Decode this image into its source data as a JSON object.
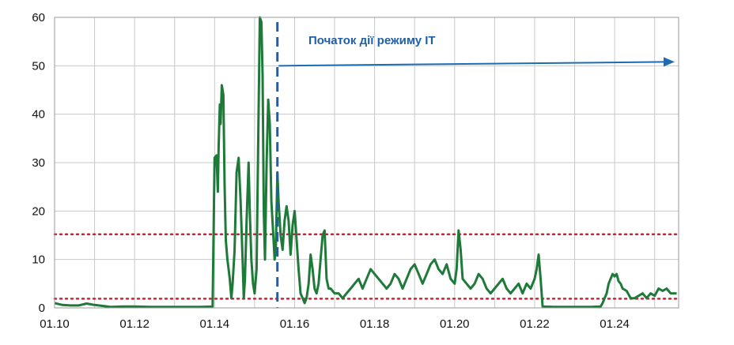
{
  "chart_data": {
    "type": "line",
    "title": "",
    "xlabel": "",
    "ylabel": "",
    "xlim": [
      10,
      25.6
    ],
    "ylim": [
      0,
      60
    ],
    "grid": true,
    "x_ticks": [
      {
        "value": 10,
        "label": "01.10"
      },
      {
        "value": 12,
        "label": "01.12"
      },
      {
        "value": 14,
        "label": "01.14"
      },
      {
        "value": 16,
        "label": "01.16"
      },
      {
        "value": 18,
        "label": "01.18"
      },
      {
        "value": 20,
        "label": "01.20"
      },
      {
        "value": 22,
        "label": "01.22"
      },
      {
        "value": 24,
        "label": "01.24"
      }
    ],
    "y_ticks": [
      {
        "value": 0,
        "label": "0"
      },
      {
        "value": 10,
        "label": "10"
      },
      {
        "value": 20,
        "label": "20"
      },
      {
        "value": 30,
        "label": "30"
      },
      {
        "value": 40,
        "label": "40"
      },
      {
        "value": 50,
        "label": "50"
      },
      {
        "value": 60,
        "label": "60"
      }
    ],
    "series": [
      {
        "color": "#1f7a3a",
        "points": [
          [
            10.0,
            1.0
          ],
          [
            10.2,
            0.6
          ],
          [
            10.4,
            0.5
          ],
          [
            10.6,
            0.5
          ],
          [
            10.8,
            0.9
          ],
          [
            11.0,
            0.6
          ],
          [
            11.2,
            0.4
          ],
          [
            11.4,
            0.2
          ],
          [
            11.7,
            0.3
          ],
          [
            12.0,
            0.3
          ],
          [
            12.4,
            0.2
          ],
          [
            12.8,
            0.2
          ],
          [
            13.2,
            0.2
          ],
          [
            13.6,
            0.2
          ],
          [
            13.95,
            0.3
          ],
          [
            14.0,
            31.0
          ],
          [
            14.05,
            31.5
          ],
          [
            14.08,
            24.0
          ],
          [
            14.1,
            33.0
          ],
          [
            14.13,
            42.0
          ],
          [
            14.15,
            38.0
          ],
          [
            14.18,
            46.0
          ],
          [
            14.22,
            44.0
          ],
          [
            14.25,
            25.0
          ],
          [
            14.28,
            14.0
          ],
          [
            14.32,
            10.0
          ],
          [
            14.38,
            6.0
          ],
          [
            14.42,
            2.0
          ],
          [
            14.45,
            5.0
          ],
          [
            14.5,
            12.0
          ],
          [
            14.55,
            28.0
          ],
          [
            14.6,
            31.0
          ],
          [
            14.65,
            22.0
          ],
          [
            14.7,
            10.0
          ],
          [
            14.73,
            2.0
          ],
          [
            14.76,
            6.0
          ],
          [
            14.8,
            18.0
          ],
          [
            14.85,
            30.0
          ],
          [
            14.88,
            20.0
          ],
          [
            14.92,
            10.0
          ],
          [
            14.96,
            5.0
          ],
          [
            15.0,
            3.0
          ],
          [
            15.05,
            8.0
          ],
          [
            15.1,
            40.0
          ],
          [
            15.13,
            60.0
          ],
          [
            15.17,
            59.0
          ],
          [
            15.2,
            48.0
          ],
          [
            15.23,
            20.0
          ],
          [
            15.26,
            10.0
          ],
          [
            15.3,
            30.0
          ],
          [
            15.34,
            43.0
          ],
          [
            15.38,
            38.0
          ],
          [
            15.42,
            22.0
          ],
          [
            15.46,
            16.0
          ],
          [
            15.5,
            10.0
          ],
          [
            15.53,
            12.0
          ],
          [
            15.57,
            28.0
          ],
          [
            15.6,
            22.0
          ],
          [
            15.65,
            15.0
          ],
          [
            15.7,
            12.0
          ],
          [
            15.75,
            18.0
          ],
          [
            15.8,
            21.0
          ],
          [
            15.85,
            18.0
          ],
          [
            15.9,
            11.0
          ],
          [
            15.95,
            17.0
          ],
          [
            16.0,
            20.0
          ],
          [
            16.05,
            14.0
          ],
          [
            16.1,
            8.0
          ],
          [
            16.15,
            3.0
          ],
          [
            16.2,
            2.0
          ],
          [
            16.25,
            1.0
          ],
          [
            16.3,
            2.0
          ],
          [
            16.35,
            5.0
          ],
          [
            16.4,
            11.0
          ],
          [
            16.45,
            8.0
          ],
          [
            16.5,
            4.0
          ],
          [
            16.55,
            3.0
          ],
          [
            16.6,
            5.0
          ],
          [
            16.65,
            10.0
          ],
          [
            16.7,
            15.0
          ],
          [
            16.75,
            16.0
          ],
          [
            16.8,
            6.0
          ],
          [
            16.85,
            4.0
          ],
          [
            16.9,
            4.0
          ],
          [
            17.0,
            3.0
          ],
          [
            17.1,
            3.0
          ],
          [
            17.2,
            2.0
          ],
          [
            17.3,
            3.0
          ],
          [
            17.4,
            4.0
          ],
          [
            17.5,
            5.0
          ],
          [
            17.6,
            6.0
          ],
          [
            17.7,
            4.0
          ],
          [
            17.8,
            6.0
          ],
          [
            17.9,
            8.0
          ],
          [
            18.0,
            7.0
          ],
          [
            18.1,
            6.0
          ],
          [
            18.2,
            5.0
          ],
          [
            18.3,
            4.0
          ],
          [
            18.4,
            5.0
          ],
          [
            18.5,
            7.0
          ],
          [
            18.6,
            6.0
          ],
          [
            18.7,
            4.0
          ],
          [
            18.8,
            6.0
          ],
          [
            18.9,
            8.0
          ],
          [
            19.0,
            9.0
          ],
          [
            19.1,
            7.0
          ],
          [
            19.2,
            5.0
          ],
          [
            19.3,
            7.0
          ],
          [
            19.4,
            9.0
          ],
          [
            19.5,
            10.0
          ],
          [
            19.6,
            8.0
          ],
          [
            19.7,
            7.0
          ],
          [
            19.8,
            9.0
          ],
          [
            19.9,
            6.0
          ],
          [
            20.0,
            5.0
          ],
          [
            20.05,
            8.0
          ],
          [
            20.1,
            16.0
          ],
          [
            20.15,
            12.0
          ],
          [
            20.2,
            6.0
          ],
          [
            20.3,
            5.0
          ],
          [
            20.4,
            4.0
          ],
          [
            20.5,
            5.0
          ],
          [
            20.6,
            7.0
          ],
          [
            20.7,
            6.0
          ],
          [
            20.8,
            4.0
          ],
          [
            20.9,
            3.0
          ],
          [
            21.0,
            4.0
          ],
          [
            21.1,
            5.0
          ],
          [
            21.2,
            6.0
          ],
          [
            21.3,
            4.0
          ],
          [
            21.4,
            3.0
          ],
          [
            21.5,
            4.0
          ],
          [
            21.6,
            5.0
          ],
          [
            21.7,
            3.0
          ],
          [
            21.8,
            5.0
          ],
          [
            21.9,
            4.0
          ],
          [
            22.0,
            6.0
          ],
          [
            22.05,
            8.0
          ],
          [
            22.1,
            11.0
          ],
          [
            22.15,
            6.0
          ],
          [
            22.2,
            0.3
          ],
          [
            22.5,
            0.2
          ],
          [
            22.8,
            0.2
          ],
          [
            23.1,
            0.2
          ],
          [
            23.4,
            0.2
          ],
          [
            23.65,
            0.3
          ],
          [
            23.7,
            1.0
          ],
          [
            23.75,
            2.0
          ],
          [
            23.8,
            3.0
          ],
          [
            23.85,
            5.0
          ],
          [
            23.9,
            6.0
          ],
          [
            23.95,
            7.0
          ],
          [
            24.0,
            6.5
          ],
          [
            24.05,
            7.0
          ],
          [
            24.1,
            5.5
          ],
          [
            24.15,
            5.0
          ],
          [
            24.2,
            4.0
          ],
          [
            24.3,
            3.5
          ],
          [
            24.4,
            2.0
          ],
          [
            24.5,
            2.0
          ],
          [
            24.6,
            2.5
          ],
          [
            24.7,
            3.0
          ],
          [
            24.8,
            2.0
          ],
          [
            24.9,
            3.0
          ],
          [
            25.0,
            2.5
          ],
          [
            25.1,
            4.0
          ],
          [
            25.2,
            3.5
          ],
          [
            25.3,
            4.0
          ],
          [
            25.4,
            3.0
          ],
          [
            25.55,
            3.0
          ]
        ]
      }
    ],
    "reference_lines": [
      {
        "axis": "y",
        "value": 15.2,
        "style": "dotted",
        "color": "#c0283a"
      },
      {
        "axis": "y",
        "value": 1.9,
        "style": "dotted",
        "color": "#c0283a"
      }
    ],
    "marker_line": {
      "axis": "x",
      "value": 15.57,
      "style": "dashed",
      "color": "#1e5fa8"
    },
    "annotation": {
      "text": "Початок дії режиму ІТ",
      "color": "#1e5fa8"
    },
    "arrow": {
      "color": "#1e6bb5",
      "from": [
        15.6,
        50.0
      ],
      "to": [
        25.5,
        50.8
      ]
    }
  }
}
